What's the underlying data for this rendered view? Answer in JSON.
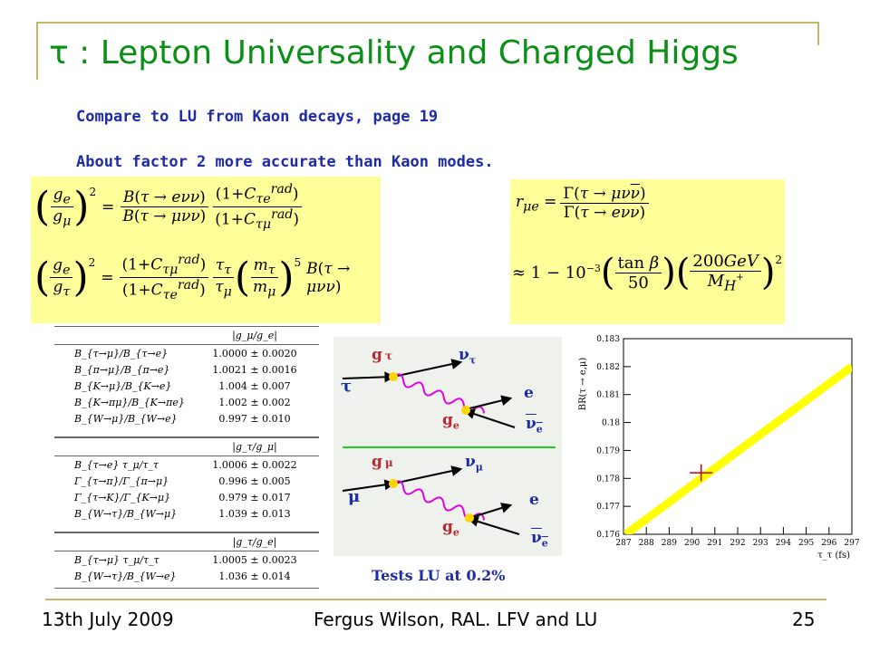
{
  "slide": {
    "title": "τ : Lepton Universality and Charged Higgs",
    "line1": "Compare to LU from Kaon decays, page 19",
    "line2": "About factor 2 more accurate than Kaon modes.",
    "tests_label": "Tests LU at 0.2%",
    "footer_date": "13th July 2009",
    "footer_author": "Fergus Wilson, RAL. LFV and LU",
    "page_number": "25"
  },
  "table": {
    "header1": "|g_μ/g_e|",
    "group1": [
      {
        "ratio": "B_{τ→μ}/B_{τ→e}",
        "value": "1.0000 ± 0.0020"
      },
      {
        "ratio": "B_{π→μ}/B_{π→e}",
        "value": "1.0021 ± 0.0016"
      },
      {
        "ratio": "B_{K→μ}/B_{K→e}",
        "value": "1.004 ± 0.007"
      },
      {
        "ratio": "B_{K→πμ}/B_{K→πe}",
        "value": "1.002 ± 0.002"
      },
      {
        "ratio": "B_{W→μ}/B_{W→e}",
        "value": "0.997 ± 0.010"
      }
    ],
    "header2": "|g_τ/g_μ|",
    "group2": [
      {
        "ratio": "B_{τ→e} τ_μ/τ_τ",
        "value": "1.0006 ± 0.0022"
      },
      {
        "ratio": "Γ_{τ→π}/Γ_{π→μ}",
        "value": "0.996 ± 0.005"
      },
      {
        "ratio": "Γ_{τ→K}/Γ_{K→μ}",
        "value": "0.979 ± 0.017"
      },
      {
        "ratio": "B_{W→τ}/B_{W→μ}",
        "value": "1.039 ± 0.013"
      }
    ],
    "header3": "|g_τ/g_e|",
    "group3": [
      {
        "ratio": "B_{τ→μ} τ_μ/τ_τ",
        "value": "1.0005 ± 0.0023"
      },
      {
        "ratio": "B_{W→τ}/B_{W→e}",
        "value": "1.036 ± 0.014"
      }
    ]
  },
  "feynman": {
    "top": {
      "g1": "g",
      "g1sub": "τ",
      "nu": "ν",
      "nusub": "τ",
      "in": "τ",
      "g2": "g",
      "g2sub": "e",
      "e": "e",
      "nubar": "ν",
      "nubarsub": "e"
    },
    "bottom": {
      "g1": "g",
      "g1sub": "μ",
      "nu": "ν",
      "nusub": "μ",
      "in": "μ",
      "g2": "g",
      "g2sub": "e",
      "e": "e",
      "nubar": "ν",
      "nubarsub": "e"
    }
  },
  "chart_data": {
    "type": "line",
    "xlabel": "τ_τ (fs)",
    "ylabel": "BR(τ → e,μ)",
    "xlim": [
      287,
      297
    ],
    "ylim": [
      0.176,
      0.183
    ],
    "xticks": [
      "287",
      "288",
      "289",
      "290",
      "291",
      "292",
      "293",
      "294",
      "295",
      "296",
      "297"
    ],
    "yticks": [
      "0.176",
      "0.177",
      "0.178",
      "0.179",
      "0.18",
      "0.181",
      "0.182",
      "0.183"
    ],
    "line": {
      "x": [
        287.1,
        297
      ],
      "y": [
        0.176,
        0.182
      ]
    },
    "point": {
      "x": 290.4,
      "y": 0.1782,
      "xerr": 0.5,
      "yerr": 0.0003
    },
    "colors": {
      "line": "#ffff00",
      "point": "#cc0000"
    },
    "grid": false
  }
}
